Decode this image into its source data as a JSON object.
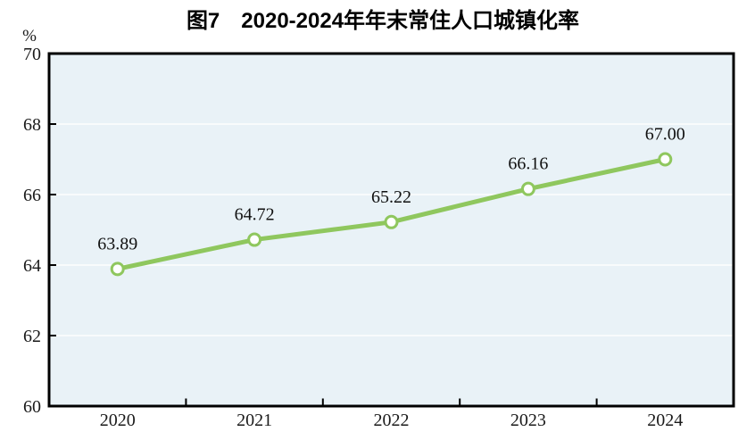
{
  "chart_data": {
    "type": "line",
    "title": "图7　2020-2024年年末常住人口城镇化率",
    "ylabel": "%",
    "xlabel": "",
    "categories": [
      "2020",
      "2021",
      "2022",
      "2023",
      "2024"
    ],
    "series": [
      {
        "name": "年末常住人口城镇化率",
        "values": [
          63.89,
          64.72,
          65.22,
          66.16,
          67.0
        ],
        "labels": [
          "63.89",
          "64.72",
          "65.22",
          "66.16",
          "67.00"
        ]
      }
    ],
    "ylim": [
      60,
      70
    ],
    "yticks": [
      60,
      62,
      64,
      66,
      68,
      70
    ],
    "grid": true,
    "legend_position": "none",
    "colors": {
      "line": "#8fc75e",
      "marker_fill": "#ffffff",
      "plot_background": "#e9f2f7",
      "gridline": "#fdfefe",
      "axis": "#000000",
      "text": "#1a1a1a"
    }
  }
}
